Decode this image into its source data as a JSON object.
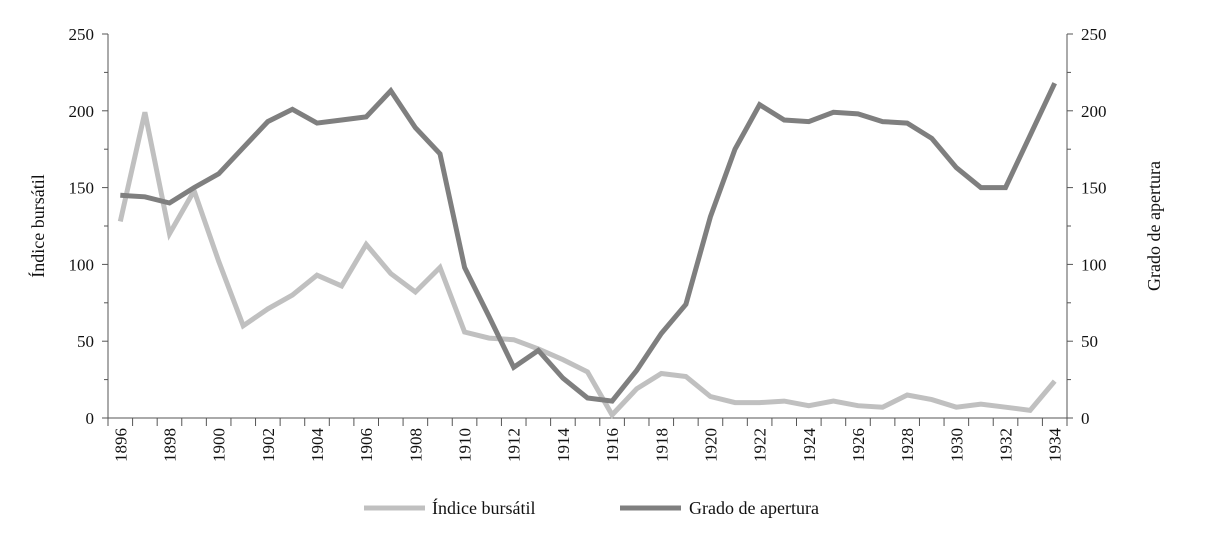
{
  "chart_data": {
    "type": "line",
    "x": [
      1896,
      1897,
      1898,
      1899,
      1900,
      1901,
      1902,
      1903,
      1904,
      1905,
      1906,
      1907,
      1908,
      1909,
      1910,
      1911,
      1912,
      1913,
      1914,
      1915,
      1916,
      1917,
      1918,
      1919,
      1920,
      1921,
      1922,
      1923,
      1924,
      1925,
      1926,
      1927,
      1928,
      1929,
      1930,
      1931,
      1932,
      1933,
      1934
    ],
    "x_tick_labels": [
      "1896",
      "1898",
      "1900",
      "1902",
      "1904",
      "1906",
      "1908",
      "1910",
      "1912",
      "1914",
      "1916",
      "1918",
      "1920",
      "1922",
      "1924",
      "1926",
      "1928",
      "1930",
      "1932",
      "1934"
    ],
    "ylabel_left": "Índice bursátil",
    "ylabel_right": "Grado de apertura",
    "ylim_left": [
      0,
      250
    ],
    "ylim_right": [
      0,
      250
    ],
    "y_ticks_left": [
      "0",
      "50",
      "100",
      "150",
      "200",
      "250"
    ],
    "y_ticks_right": [
      "0",
      "50",
      "100",
      "150",
      "200",
      "250"
    ],
    "grid": false,
    "legend_position": "bottom",
    "series": [
      {
        "name": "Índice bursátil",
        "axis": "left",
        "color": "#c0c0c0",
        "values": [
          128,
          199,
          120,
          148,
          102,
          60,
          71,
          80,
          93,
          86,
          113,
          94,
          82,
          98,
          56,
          52,
          51,
          45,
          38,
          30,
          2,
          19,
          29,
          27,
          14,
          10,
          10,
          11,
          8,
          11,
          8,
          7,
          15,
          12,
          7,
          9,
          7,
          5,
          24
        ]
      },
      {
        "name": "Grado de apertura",
        "axis": "right",
        "color": "#7f7f7f",
        "values": [
          145,
          144,
          140,
          150,
          159,
          176,
          193,
          201,
          192,
          194,
          196,
          213,
          189,
          172,
          98,
          66,
          33,
          44,
          26,
          13,
          11,
          31,
          55,
          74,
          131,
          175,
          204,
          194,
          193,
          199,
          198,
          193,
          192,
          182,
          163,
          150,
          150,
          184,
          218
        ]
      }
    ]
  }
}
